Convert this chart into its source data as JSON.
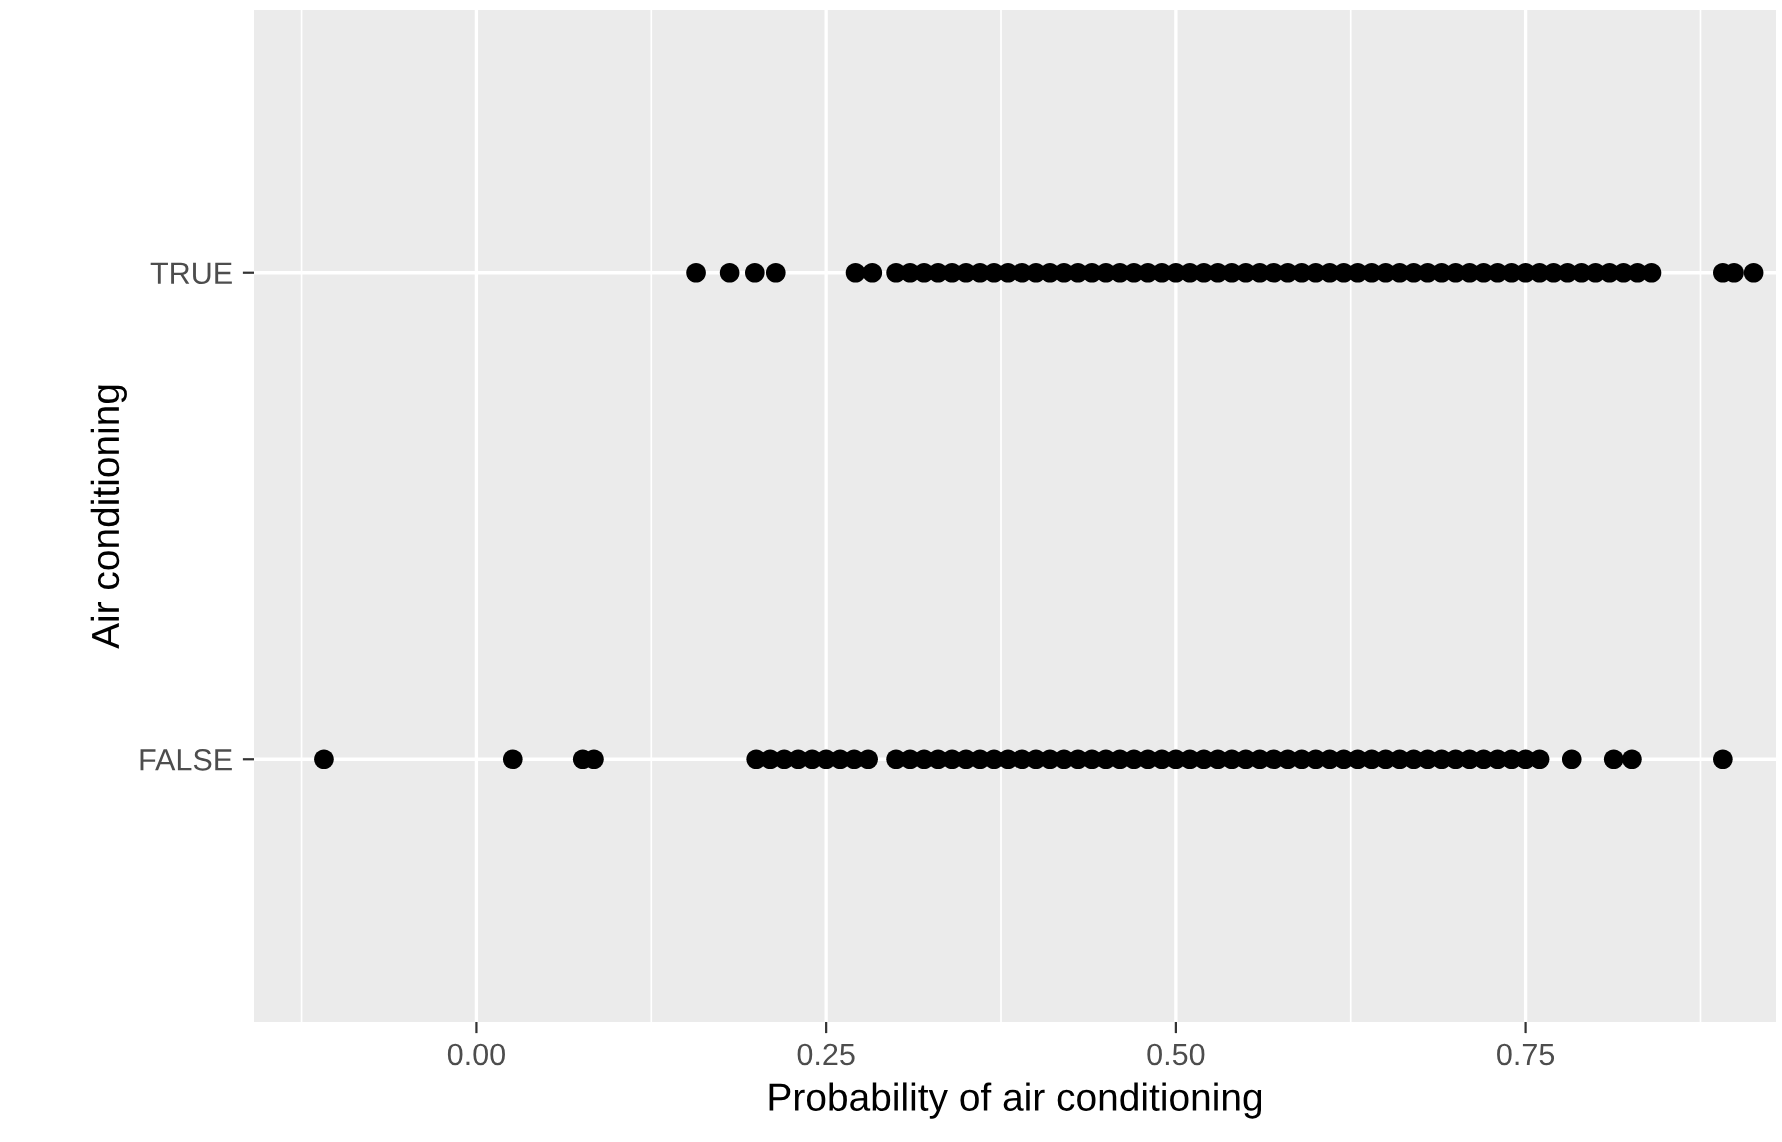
{
  "chart_data": {
    "type": "scatter",
    "orientation": "horizontal",
    "xlabel": "Probability of air conditioning",
    "ylabel": "Air conditioning",
    "categories": [
      "TRUE",
      "FALSE"
    ],
    "xlim": [
      -0.159,
      0.929
    ],
    "xticks": [
      {
        "value": 0,
        "label": "0.00"
      },
      0.25,
      {
        "value": 0.5,
        "label": "0.50"
      },
      0.75
    ],
    "grid": true,
    "marker": "circle",
    "series": [
      {
        "color": "#000000",
        "values": [
          0.157,
          -0.109
        ]
      },
      {
        "color": "#000000",
        "values": [
          0.181,
          0.026
        ]
      },
      {
        "color": "#000000",
        "values": [
          0.199,
          0.076
        ]
      },
      {
        "color": "#000000",
        "values": [
          0.214,
          0.084
        ]
      },
      {
        "color": "#000000",
        "values": [
          0.271,
          0.2
        ]
      },
      {
        "color": "#000000",
        "values": [
          0.283,
          0.21
        ]
      },
      {
        "color": "#000000",
        "values": [
          0.3,
          0.22
        ]
      },
      {
        "color": "#000000",
        "values": [
          0.31,
          0.23
        ]
      },
      {
        "color": "#000000",
        "values": [
          0.32,
          0.24
        ]
      },
      {
        "color": "#000000",
        "values": [
          0.33,
          0.25
        ]
      },
      {
        "color": "#000000",
        "values": [
          0.34,
          0.26
        ]
      },
      {
        "color": "#000000",
        "values": [
          0.35,
          0.27
        ]
      },
      {
        "color": "#000000",
        "values": [
          0.36,
          0.28
        ]
      },
      {
        "color": "#000000",
        "values": [
          0.37,
          0.3
        ]
      },
      {
        "color": "#000000",
        "values": [
          0.38,
          0.31
        ]
      },
      {
        "color": "#000000",
        "values": [
          0.39,
          0.32
        ]
      },
      {
        "color": "#000000",
        "values": [
          0.4,
          0.33
        ]
      },
      {
        "color": "#000000",
        "values": [
          0.41,
          0.34
        ]
      },
      {
        "color": "#000000",
        "values": [
          0.42,
          0.35
        ]
      },
      {
        "color": "#000000",
        "values": [
          0.43,
          0.36
        ]
      },
      {
        "color": "#000000",
        "values": [
          0.44,
          0.37
        ]
      },
      {
        "color": "#000000",
        "values": [
          0.45,
          0.38
        ]
      },
      {
        "color": "#000000",
        "values": [
          0.46,
          0.39
        ]
      },
      {
        "color": "#000000",
        "values": [
          0.47,
          0.4
        ]
      },
      {
        "color": "#000000",
        "values": [
          0.48,
          0.41
        ]
      },
      {
        "color": "#000000",
        "values": [
          0.49,
          0.42
        ]
      },
      {
        "color": "#000000",
        "values": [
          0.5,
          0.43
        ]
      },
      {
        "color": "#000000",
        "values": [
          0.51,
          0.44
        ]
      },
      {
        "color": "#000000",
        "values": [
          0.52,
          0.45
        ]
      },
      {
        "color": "#000000",
        "values": [
          0.53,
          0.46
        ]
      },
      {
        "color": "#000000",
        "values": [
          0.54,
          0.47
        ]
      },
      {
        "color": "#000000",
        "values": [
          0.55,
          0.48
        ]
      },
      {
        "color": "#000000",
        "values": [
          0.56,
          0.49
        ]
      },
      {
        "color": "#000000",
        "values": [
          0.57,
          0.5
        ]
      },
      {
        "color": "#000000",
        "values": [
          0.58,
          0.51
        ]
      },
      {
        "color": "#000000",
        "values": [
          0.59,
          0.52
        ]
      },
      {
        "color": "#000000",
        "values": [
          0.6,
          0.53
        ]
      },
      {
        "color": "#000000",
        "values": [
          0.61,
          0.54
        ]
      },
      {
        "color": "#000000",
        "values": [
          0.62,
          0.55
        ]
      },
      {
        "color": "#000000",
        "values": [
          0.63,
          0.56
        ]
      },
      {
        "color": "#000000",
        "values": [
          0.64,
          0.57
        ]
      },
      {
        "color": "#000000",
        "values": [
          0.65,
          0.58
        ]
      },
      {
        "color": "#000000",
        "values": [
          0.66,
          0.59
        ]
      },
      {
        "color": "#000000",
        "values": [
          0.67,
          0.6
        ]
      },
      {
        "color": "#000000",
        "values": [
          0.68,
          0.61
        ]
      },
      {
        "color": "#000000",
        "values": [
          0.69,
          0.62
        ]
      },
      {
        "color": "#000000",
        "values": [
          0.7,
          0.63
        ]
      },
      {
        "color": "#000000",
        "values": [
          0.71,
          0.64
        ]
      },
      {
        "color": "#000000",
        "values": [
          0.72,
          0.65
        ]
      },
      {
        "color": "#000000",
        "values": [
          0.73,
          0.66
        ]
      },
      {
        "color": "#000000",
        "values": [
          0.74,
          0.67
        ]
      },
      {
        "color": "#000000",
        "values": [
          0.75,
          0.68
        ]
      },
      {
        "color": "#000000",
        "values": [
          0.76,
          0.69
        ]
      },
      {
        "color": "#000000",
        "values": [
          0.77,
          0.7
        ]
      },
      {
        "color": "#000000",
        "values": [
          0.78,
          0.71
        ]
      },
      {
        "color": "#000000",
        "values": [
          0.79,
          0.72
        ]
      },
      {
        "color": "#000000",
        "values": [
          0.8,
          0.73
        ]
      },
      {
        "color": "#000000",
        "values": [
          0.81,
          0.74
        ]
      },
      {
        "color": "#000000",
        "values": [
          0.82,
          0.75
        ]
      },
      {
        "color": "#000000",
        "values": [
          0.83,
          0.76
        ]
      },
      {
        "color": "#000000",
        "values": [
          0.84,
          0.783
        ]
      },
      {
        "color": "#000000",
        "values": [
          0.891,
          0.813
        ]
      },
      {
        "color": "#000000",
        "values": [
          0.899,
          0.826
        ]
      },
      {
        "color": "#000000",
        "values": [
          0.913,
          0.891
        ]
      }
    ]
  }
}
